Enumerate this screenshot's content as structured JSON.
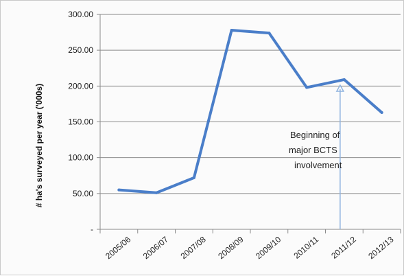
{
  "chart_data": {
    "type": "line",
    "categories": [
      "2005/06",
      "2006/07",
      "2007/08",
      "2008/09",
      "2009/10",
      "2010/11",
      "2011/12",
      "2012/13"
    ],
    "series": [
      {
        "values": [
          55,
          51,
          72,
          278,
          274,
          198,
          209,
          163
        ]
      }
    ],
    "ylabel": "# ha's surveyed per year ('000s)",
    "y_ticks": [
      "-",
      "50.00",
      "100.00",
      "150.00",
      "200.00",
      "250.00",
      "300.00"
    ],
    "ylim": [
      0,
      300
    ],
    "grid": true,
    "annotation": {
      "lines": [
        "Beginning of",
        "major BCTS",
        "involvement"
      ],
      "points_to_category": "2011/12",
      "points_to_value": 207
    },
    "colors": {
      "line": "#4a7ec9",
      "arrow": "#8fb3df",
      "grid": "#8a8a8a"
    }
  }
}
